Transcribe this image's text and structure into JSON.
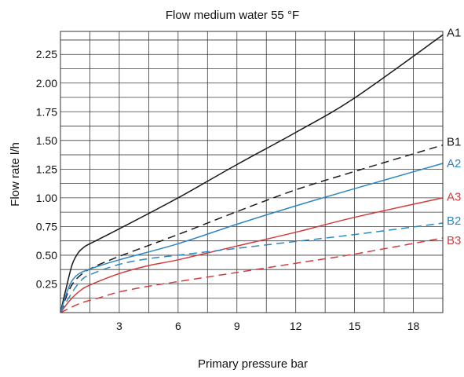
{
  "chart_data": {
    "type": "line",
    "title": "Flow medium water 55 °F",
    "xlabel": "Primary pressure bar",
    "ylabel": "Flow rate l/h",
    "xlim": [
      0,
      19.5
    ],
    "ylim": [
      0,
      2.45
    ],
    "xticks": [
      3,
      6,
      9,
      12,
      15,
      18
    ],
    "xtick_labels": [
      "3",
      "6",
      "9",
      "12",
      "15",
      "18"
    ],
    "yticks": [
      0.25,
      0.5,
      0.75,
      1.0,
      1.25,
      1.5,
      1.75,
      2.0,
      2.25
    ],
    "ytick_labels": [
      "0.25",
      "0.50",
      "0.75",
      "1.00",
      "1.25",
      "1.50",
      "1.75",
      "2.00",
      "2.25"
    ],
    "xgrid": [
      1.5,
      3,
      4.5,
      6,
      7.5,
      9,
      10.5,
      12,
      13.5,
      15,
      16.5,
      18
    ],
    "ygrid": [
      0.125,
      0.25,
      0.375,
      0.5,
      0.625,
      0.75,
      0.875,
      1.0,
      1.125,
      1.25,
      1.375,
      1.5,
      1.625,
      1.75,
      1.875,
      2.0,
      2.125,
      2.25,
      2.375
    ],
    "grid": true,
    "series": [
      {
        "name": "A1",
        "color": "#1a1a1a",
        "dashed": false,
        "x": [
          0,
          0.3,
          0.6,
          0.9,
          1.2,
          1.5,
          3,
          6,
          9,
          12,
          15,
          19.5
        ],
        "y": [
          0,
          0.22,
          0.42,
          0.52,
          0.57,
          0.6,
          0.73,
          1.0,
          1.29,
          1.57,
          1.87,
          2.42
        ]
      },
      {
        "name": "B1",
        "color": "#1a1a1a",
        "dashed": true,
        "x": [
          0,
          0.4,
          0.8,
          1.5,
          3,
          6,
          9,
          12,
          15,
          19.5
        ],
        "y": [
          0,
          0.18,
          0.29,
          0.38,
          0.49,
          0.68,
          0.88,
          1.07,
          1.23,
          1.46
        ]
      },
      {
        "name": "A2",
        "color": "#2e86c1",
        "dashed": false,
        "x": [
          0,
          0.4,
          0.8,
          1.5,
          3,
          6,
          9,
          12,
          15,
          19.5
        ],
        "y": [
          0,
          0.21,
          0.32,
          0.38,
          0.46,
          0.6,
          0.77,
          0.93,
          1.08,
          1.3
        ]
      },
      {
        "name": "A3",
        "color": "#d23c3c",
        "dashed": false,
        "x": [
          0,
          0.5,
          1.0,
          1.5,
          3,
          4.5,
          6,
          9,
          12,
          15,
          19.5
        ],
        "y": [
          0,
          0.11,
          0.19,
          0.24,
          0.34,
          0.41,
          0.46,
          0.58,
          0.7,
          0.83,
          1.0
        ]
      },
      {
        "name": "B2",
        "color": "#2e86c1",
        "dashed": true,
        "x": [
          0,
          0.5,
          1.0,
          1.5,
          3,
          4.5,
          6,
          9,
          12,
          15,
          19.5
        ],
        "y": [
          0,
          0.15,
          0.27,
          0.33,
          0.42,
          0.47,
          0.5,
          0.56,
          0.62,
          0.68,
          0.78
        ]
      },
      {
        "name": "B3",
        "color": "#d23c3c",
        "dashed": true,
        "x": [
          0,
          1,
          2,
          3,
          4.5,
          6,
          9,
          12,
          15,
          19.5
        ],
        "y": [
          0,
          0.08,
          0.13,
          0.18,
          0.23,
          0.27,
          0.35,
          0.43,
          0.51,
          0.65
        ]
      }
    ],
    "series_labels": [
      {
        "text": "A1",
        "color": "#1a1a1a",
        "y": 2.44
      },
      {
        "text": "B1",
        "color": "#1a1a1a",
        "y": 1.49
      },
      {
        "text": "A2",
        "color": "#2e86c1",
        "y": 1.3
      },
      {
        "text": "A3",
        "color": "#d23c3c",
        "y": 1.01
      },
      {
        "text": "B2",
        "color": "#2e86c1",
        "y": 0.8
      },
      {
        "text": "B3",
        "color": "#d23c3c",
        "y": 0.63
      }
    ]
  }
}
